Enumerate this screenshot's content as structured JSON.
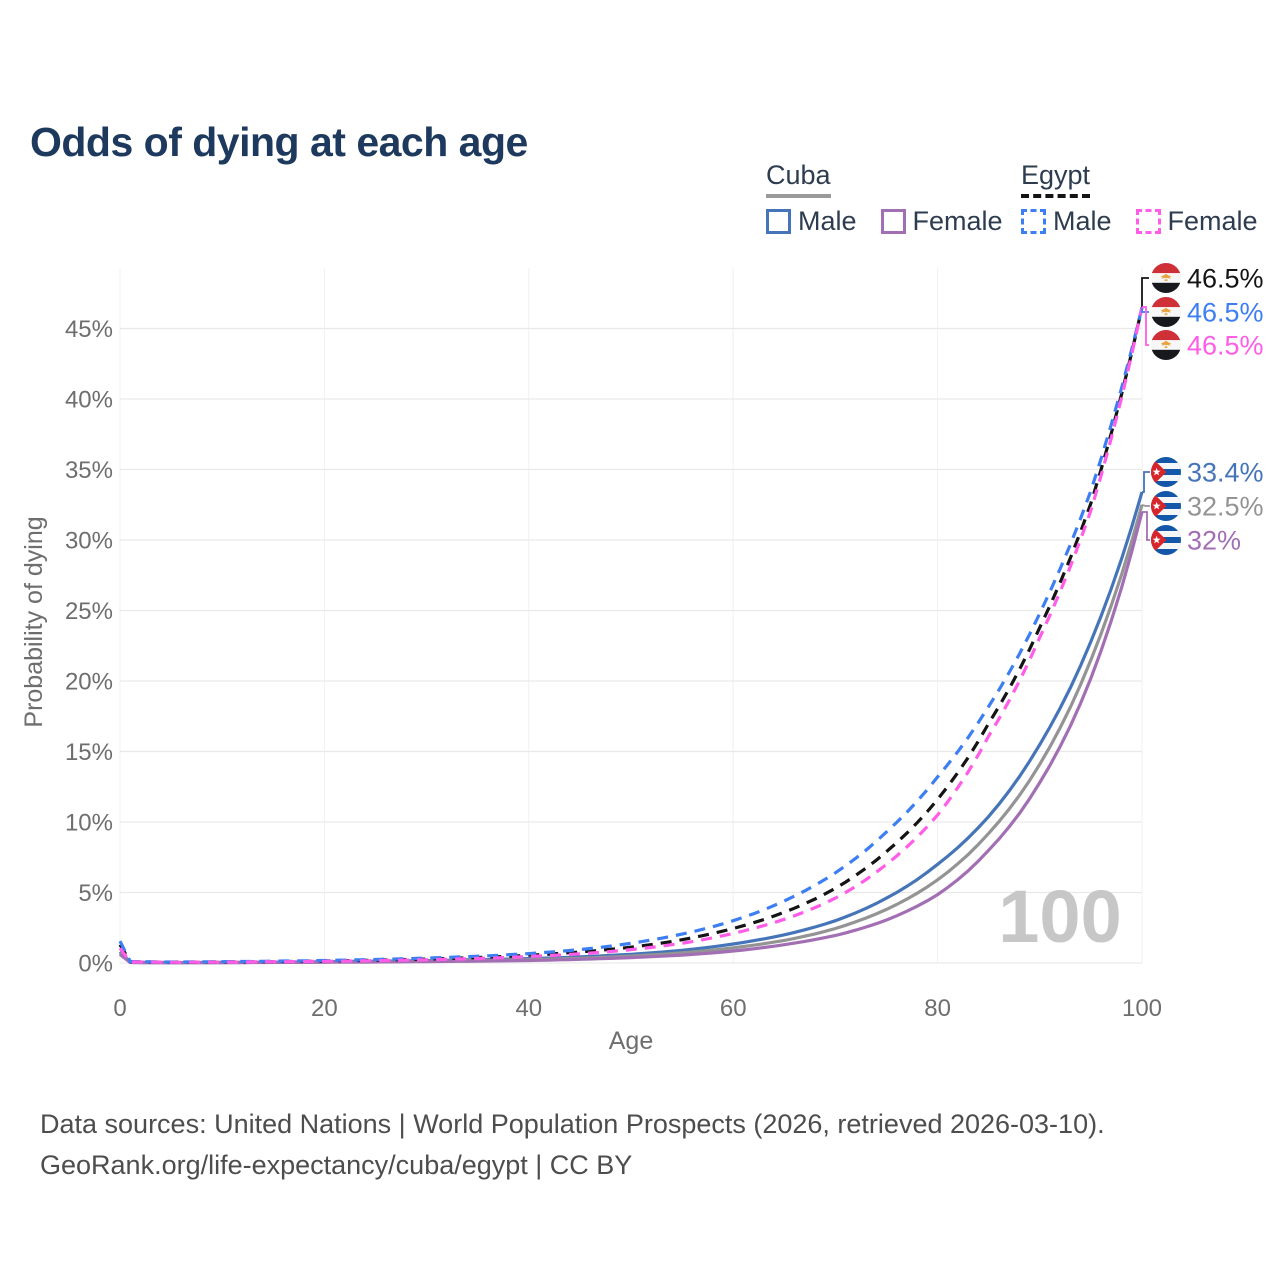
{
  "title": "Odds of dying at each age",
  "legend": {
    "groups": [
      {
        "name": "Cuba",
        "line_style": "solid",
        "underline_color": "#9a9a9a",
        "items": [
          {
            "label": "Male",
            "color": "#4575b8"
          },
          {
            "label": "Female",
            "color": "#a36fb4"
          }
        ]
      },
      {
        "name": "Egypt",
        "line_style": "dashed",
        "underline_color": "#141414",
        "items": [
          {
            "label": "Male",
            "color": "#3d7ff2"
          },
          {
            "label": "Female",
            "color": "#ff5ce8"
          }
        ]
      }
    ]
  },
  "chart_data": {
    "type": "line",
    "title": "Odds of dying at each age",
    "xlabel": "Age",
    "ylabel": "Probability of dying",
    "x_ticks": [
      0,
      20,
      40,
      60,
      80,
      100
    ],
    "y_tick_values": [
      0,
      5,
      10,
      15,
      20,
      25,
      30,
      35,
      40,
      45
    ],
    "y_tick_labels": [
      "0%",
      "5%",
      "10%",
      "15%",
      "20%",
      "25%",
      "30%",
      "35%",
      "40%",
      "45%"
    ],
    "xlim": [
      0,
      100
    ],
    "ylim": [
      0,
      47.5
    ],
    "grid": true,
    "legend_position": "top-right",
    "unit": "percent",
    "ages": [
      0,
      1,
      5,
      10,
      15,
      20,
      25,
      30,
      35,
      40,
      45,
      50,
      55,
      60,
      65,
      70,
      75,
      80,
      85,
      90,
      95,
      100
    ],
    "series": [
      {
        "id": "cuba_male",
        "name": "Cuba Male",
        "country": "Cuba",
        "sex": "Male",
        "color": "#4575b8",
        "dashed": false,
        "flag": "cuba",
        "end_label": "33.4%",
        "values": [
          0.8,
          0.05,
          0.03,
          0.04,
          0.06,
          0.09,
          0.13,
          0.17,
          0.23,
          0.31,
          0.43,
          0.62,
          0.9,
          1.35,
          2.0,
          3.0,
          4.6,
          7.0,
          10.4,
          15.5,
          22.8,
          33.4
        ]
      },
      {
        "id": "cuba_both",
        "name": "Cuba Both sexes",
        "country": "Cuba",
        "sex": "Both",
        "color": "#949494",
        "dashed": false,
        "flag": "cuba",
        "end_label": "32.5%",
        "values": [
          0.7,
          0.04,
          0.025,
          0.03,
          0.05,
          0.07,
          0.1,
          0.13,
          0.18,
          0.24,
          0.34,
          0.49,
          0.72,
          1.08,
          1.6,
          2.45,
          3.8,
          5.9,
          9.2,
          14.1,
          21.5,
          32.5
        ]
      },
      {
        "id": "cuba_female",
        "name": "Cuba Female",
        "country": "Cuba",
        "sex": "Female",
        "color": "#a36fb4",
        "dashed": false,
        "flag": "cuba",
        "end_label": "32%",
        "values": [
          0.6,
          0.035,
          0.02,
          0.025,
          0.04,
          0.05,
          0.07,
          0.1,
          0.13,
          0.18,
          0.26,
          0.38,
          0.56,
          0.85,
          1.3,
          1.95,
          3.05,
          4.85,
          8.0,
          12.8,
          20.2,
          32.0
        ]
      },
      {
        "id": "egypt_both",
        "name": "Egypt Both sexes",
        "country": "Egypt",
        "sex": "Both",
        "color": "#141414",
        "dashed": true,
        "flag": "egypt",
        "end_label": "46.5%",
        "values": [
          1.3,
          0.09,
          0.06,
          0.07,
          0.1,
          0.14,
          0.2,
          0.28,
          0.39,
          0.55,
          0.78,
          1.12,
          1.65,
          2.45,
          3.6,
          5.3,
          7.9,
          11.6,
          17.0,
          23.8,
          32.6,
          46.5
        ]
      },
      {
        "id": "egypt_male",
        "name": "Egypt Male",
        "country": "Egypt",
        "sex": "Male",
        "color": "#3d7ff2",
        "dashed": true,
        "flag": "egypt",
        "end_label": "46.5%",
        "values": [
          1.55,
          0.1,
          0.07,
          0.09,
          0.13,
          0.18,
          0.25,
          0.35,
          0.48,
          0.67,
          0.95,
          1.4,
          2.05,
          3.0,
          4.4,
          6.4,
          9.3,
          13.2,
          18.2,
          24.8,
          33.5,
          46.5
        ]
      },
      {
        "id": "egypt_female",
        "name": "Egypt Female",
        "country": "Egypt",
        "sex": "Female",
        "color": "#ff5ce8",
        "dashed": true,
        "flag": "egypt",
        "end_label": "46.5%",
        "values": [
          1.05,
          0.08,
          0.05,
          0.06,
          0.09,
          0.12,
          0.17,
          0.23,
          0.32,
          0.46,
          0.65,
          0.95,
          1.4,
          2.1,
          3.1,
          4.6,
          7.0,
          10.5,
          16.1,
          23.1,
          32.1,
          46.5
        ]
      }
    ],
    "end_label_order": [
      "egypt_both",
      "egypt_male",
      "egypt_female",
      "cuba_male",
      "cuba_both",
      "cuba_female"
    ]
  },
  "watermark": "100",
  "footer": {
    "line1": "Data sources: United Nations | World Population Prospects (2026, retrieved 2026-03-10).",
    "line2": "GeoRank.org/life-expectancy/cuba/egypt | CC BY"
  }
}
